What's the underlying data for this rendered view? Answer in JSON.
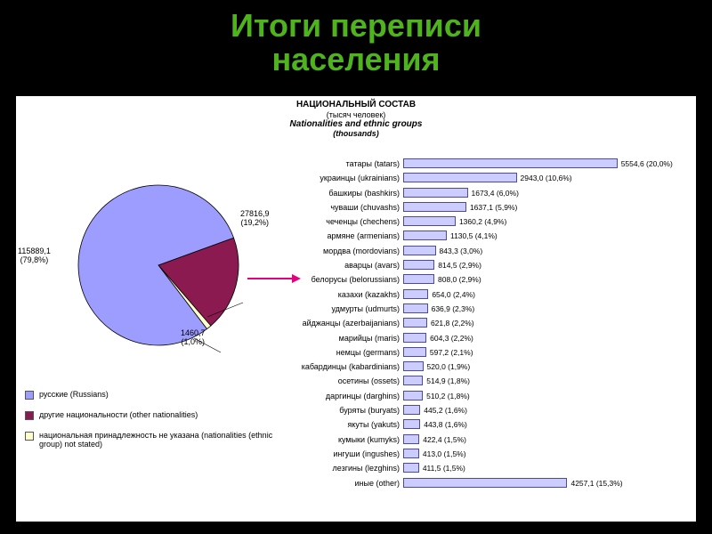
{
  "title_l1": "Итоги переписи",
  "title_l2": "населения",
  "header_ru": "НАЦИОНАЛЬНЫЙ СОСТАВ",
  "header_ru_sub": "(тысяч человек)",
  "header_en": "Nationalities and ethnic groups",
  "header_en_sub": "(thousands)",
  "colors": {
    "title": "#4fb31d",
    "panel_bg": "#ffffff",
    "pie_russians": "#9d9dff",
    "pie_other": "#8a1a4f",
    "pie_unstated": "#ffffcc",
    "pie_border": "#000000",
    "bar_fill": "#ccccff",
    "bar_border": "#4a4a9f",
    "arrow": "#e4007f"
  },
  "pie": {
    "type": "pie",
    "slices": [
      {
        "key": "russians",
        "value": 115889.1,
        "pct": 79.8,
        "label": "115889,1\n(79,8%)",
        "color": "#9d9dff"
      },
      {
        "key": "other",
        "value": 27816.9,
        "pct": 19.2,
        "label": "27816,9\n(19,2%)",
        "color": "#8a1a4f"
      },
      {
        "key": "unstated",
        "value": 1460.7,
        "pct": 1.0,
        "label": "1460,7\n(1,0%)",
        "color": "#ffffcc"
      }
    ],
    "legend": [
      {
        "color": "#9d9dff",
        "text": "русские (Russians)"
      },
      {
        "color": "#8a1a4f",
        "text": "другие национальности (other nationalities)"
      },
      {
        "color": "#ffffcc",
        "text": "национальная принадлежность не указана (nationalities (ethnic group) not stated)"
      }
    ]
  },
  "bars": {
    "type": "bar",
    "max_value": 6000,
    "bar_color": "#ccccff",
    "bar_border": "#4a4a9f",
    "items": [
      {
        "name": "татары (tatars)",
        "value": 5554.6,
        "pct": "20,0"
      },
      {
        "name": "украинцы (ukrainians)",
        "value": 2943.0,
        "pct": "10,6"
      },
      {
        "name": "башкиры (bashkirs)",
        "value": 1673.4,
        "pct": "6,0"
      },
      {
        "name": "чуваши (chuvashs)",
        "value": 1637.1,
        "pct": "5,9"
      },
      {
        "name": "чеченцы (chechens)",
        "value": 1360.2,
        "pct": "4,9"
      },
      {
        "name": "армяне (armenians)",
        "value": 1130.5,
        "pct": "4,1"
      },
      {
        "name": "мордва (mordovians)",
        "value": 843.3,
        "pct": "3,0"
      },
      {
        "name": "аварцы (avars)",
        "value": 814.5,
        "pct": "2,9"
      },
      {
        "name": "белорусы (belorussians)",
        "value": 808.0,
        "pct": "2,9"
      },
      {
        "name": "казахи (kazakhs)",
        "value": 654.0,
        "pct": "2,4"
      },
      {
        "name": "удмурты (udmurts)",
        "value": 636.9,
        "pct": "2,3"
      },
      {
        "name": "айджанцы (azerbaijanians)",
        "value": 621.8,
        "pct": "2,2"
      },
      {
        "name": "марийцы (maris)",
        "value": 604.3,
        "pct": "2,2"
      },
      {
        "name": "немцы (germans)",
        "value": 597.2,
        "pct": "2,1"
      },
      {
        "name": "кабардинцы (kabardinians)",
        "value": 520.0,
        "pct": "1,9"
      },
      {
        "name": "осетины (ossets)",
        "value": 514.9,
        "pct": "1,8"
      },
      {
        "name": "даргинцы (darghins)",
        "value": 510.2,
        "pct": "1,8"
      },
      {
        "name": "буряты (buryats)",
        "value": 445.2,
        "pct": "1,6"
      },
      {
        "name": "якуты (yakuts)",
        "value": 443.8,
        "pct": "1,6"
      },
      {
        "name": "кумыки (kumyks)",
        "value": 422.4,
        "pct": "1,5"
      },
      {
        "name": "ингуши (ingushes)",
        "value": 413.0,
        "pct": "1,5"
      },
      {
        "name": "лезгины (lezghins)",
        "value": 411.5,
        "pct": "1,5"
      },
      {
        "name": "иные (other)",
        "value": 4257.1,
        "pct": "15,3"
      }
    ]
  }
}
